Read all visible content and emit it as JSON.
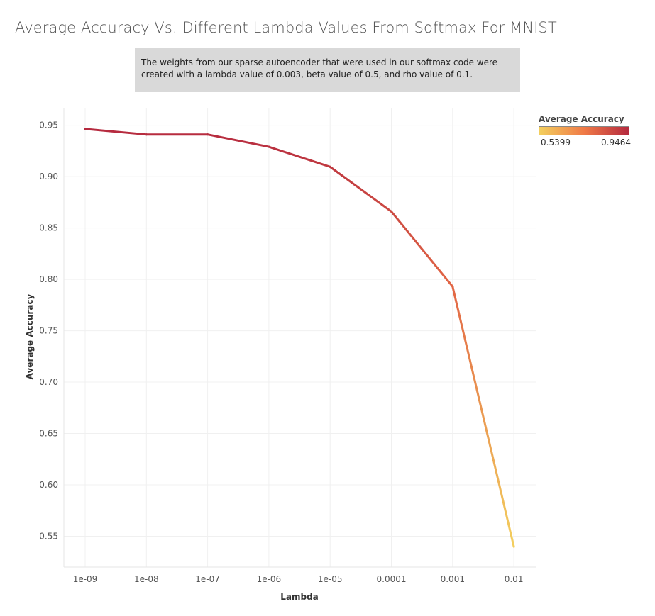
{
  "chart_data": {
    "type": "line",
    "title": "Average Accuracy Vs. Different Lambda Values From Softmax For MNIST",
    "annotation": "The weights from our sparse autoencoder that were used in our softmax code were created with a lambda value of 0.003, beta value of 0.5, and rho value of 0.1.",
    "xlabel": "Lambda",
    "ylabel": "Average Accuracy",
    "categories": [
      "1e-09",
      "1e-08",
      "1e-07",
      "1e-06",
      "1e-05",
      "0.0001",
      "0.001",
      "0.01"
    ],
    "values": [
      0.9464,
      0.941,
      0.941,
      0.929,
      0.9095,
      0.866,
      0.793,
      0.5399
    ],
    "ylim": [
      0.52,
      0.967
    ],
    "yticks": [
      "0.55",
      "0.60",
      "0.65",
      "0.70",
      "0.75",
      "0.80",
      "0.85",
      "0.90",
      "0.95"
    ],
    "grid": true,
    "legend": {
      "title": "Average Accuracy",
      "min_label": "0.5399",
      "max_label": "0.9464",
      "min": 0.5399,
      "max": 0.9464,
      "position": "top-right"
    },
    "colors": {
      "low": "#f3cf5e",
      "mid": "#f07a47",
      "high": "#b52a3f",
      "grid": "#f0f0f0",
      "annotation_bg": "#d9d9d9"
    }
  }
}
